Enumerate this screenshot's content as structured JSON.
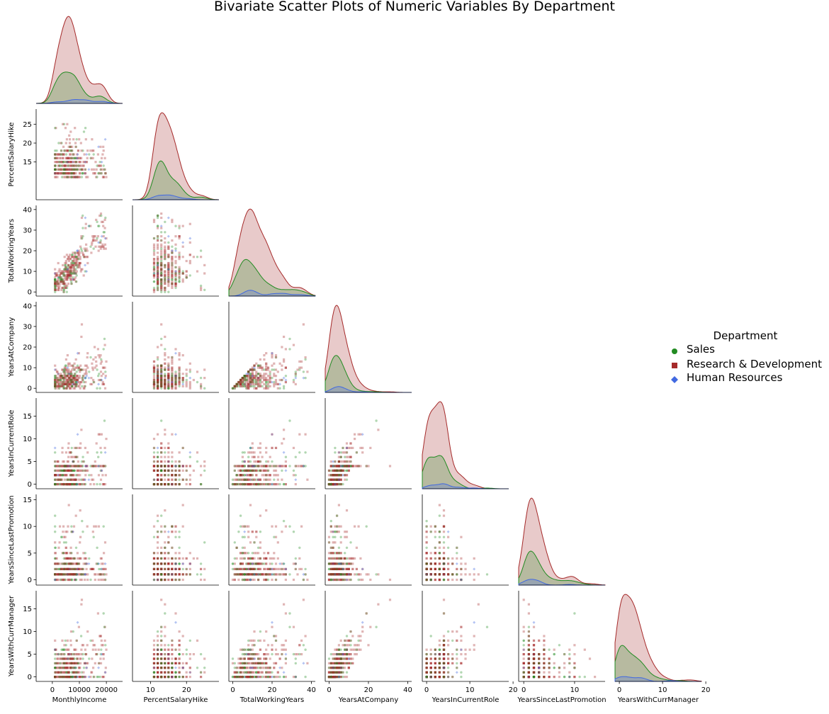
{
  "chart_data": {
    "type": "scatter",
    "title": "Bivariate Scatter Plots of Numeric Variables By Department",
    "layout": "pairplot-lower-corner",
    "diagonal": "kde",
    "variables": [
      {
        "name": "MonthlyIncome",
        "range": [
          -6000,
          26000
        ],
        "ticks": [
          0,
          10000,
          20000
        ]
      },
      {
        "name": "PercentSalaryHike",
        "range": [
          5,
          29
        ],
        "ticks": [
          15,
          20,
          25
        ],
        "xticks": [
          10,
          20
        ]
      },
      {
        "name": "TotalWorkingYears",
        "range": [
          -2,
          42
        ],
        "ticks": [
          0,
          10,
          20,
          30,
          40
        ],
        "xticks": [
          0,
          20,
          40
        ]
      },
      {
        "name": "YearsAtCompany",
        "range": [
          -2,
          42
        ],
        "ticks": [
          0,
          10,
          20,
          30,
          40
        ],
        "xticks": [
          0,
          20,
          40
        ]
      },
      {
        "name": "YearsInCurrentRole",
        "range": [
          -1,
          19
        ],
        "ticks": [
          0,
          5,
          10,
          15
        ],
        "xticks": [
          0,
          10,
          20
        ]
      },
      {
        "name": "YearsSinceLastPromotion",
        "range": [
          -1,
          16
        ],
        "ticks": [
          0,
          5,
          10,
          15
        ],
        "xticks": [
          0,
          10
        ]
      },
      {
        "name": "YearsWithCurrManager",
        "range": [
          -1,
          19
        ],
        "ticks": [
          0,
          5,
          10,
          15
        ],
        "xticks": [
          0,
          10,
          20
        ]
      }
    ],
    "legend": {
      "title": "Department",
      "placement": "right",
      "entries": [
        {
          "name": "Sales",
          "color": "#228B22",
          "marker": "circle"
        },
        {
          "name": "Research & Development",
          "color": "#A52A2A",
          "marker": "square"
        },
        {
          "name": "Human Resources",
          "color": "#4169E1",
          "marker": "diamond"
        }
      ]
    },
    "series_weights": {
      "Sales": 0.3,
      "Research & Development": 0.65,
      "Human Resources": 0.05
    },
    "point_count_per_panel": 380
  }
}
